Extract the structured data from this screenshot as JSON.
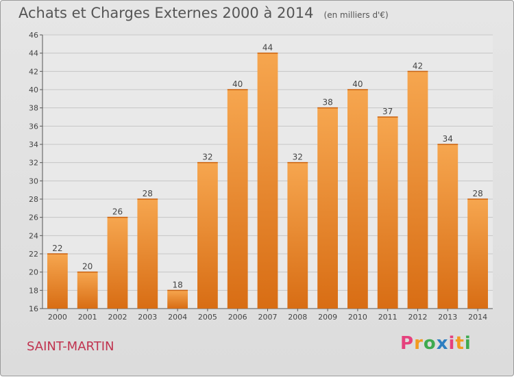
{
  "header": {
    "title": "Achats et Charges Externes 2000 à 2014",
    "unit": "(en milliers d'€)"
  },
  "footer": {
    "place": "SAINT-MARTIN",
    "logo": "Proxiti"
  },
  "colors": {
    "bar_light": "#f6a64f",
    "bar_dark": "#d86d14",
    "place_text": "#c0334f",
    "logo": [
      "#e5417d",
      "#f29a1f",
      "#3eaa4f",
      "#2e7fc1",
      "#e5417d",
      "#f29a1f",
      "#3eaa4f"
    ]
  },
  "chart_data": {
    "type": "bar",
    "title": "Achats et Charges Externes 2000 à 2014",
    "subtitle": "(en milliers d'€)",
    "categories": [
      "2000",
      "2001",
      "2002",
      "2003",
      "2004",
      "2005",
      "2006",
      "2007",
      "2008",
      "2009",
      "2010",
      "2011",
      "2012",
      "2013",
      "2014"
    ],
    "values": [
      22,
      20,
      26,
      28,
      18,
      32,
      40,
      44,
      32,
      38,
      40,
      37,
      42,
      34,
      28
    ],
    "ylim": [
      16,
      46
    ],
    "yticks": [
      16,
      18,
      20,
      22,
      24,
      26,
      28,
      30,
      32,
      34,
      36,
      38,
      40,
      42,
      44,
      46
    ],
    "grid": true,
    "data_labels": true
  }
}
